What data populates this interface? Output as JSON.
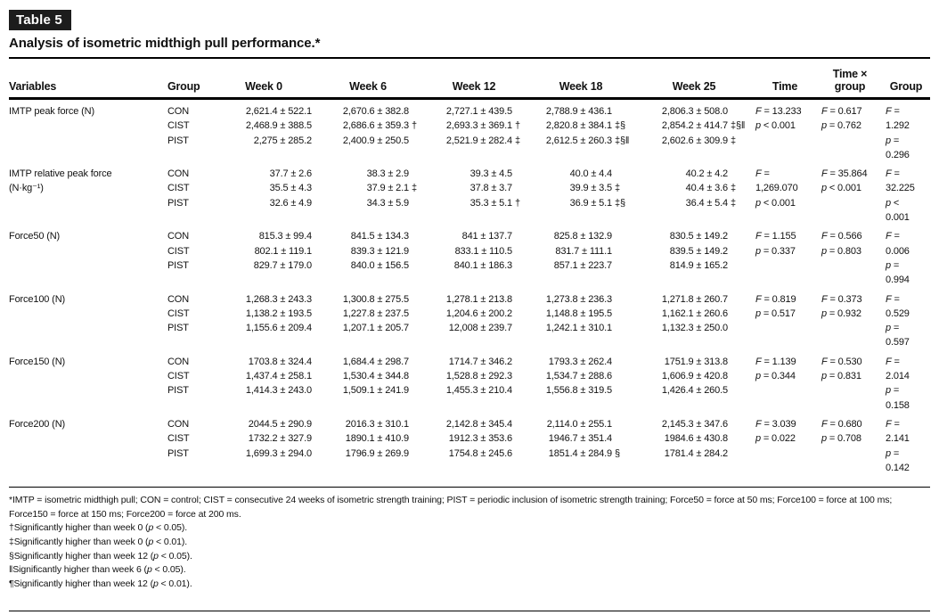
{
  "badge": "Table 5",
  "caption": "Analysis of isometric midthigh pull performance.*",
  "columns": {
    "variables": "Variables",
    "group": "Group",
    "week0": "Week 0",
    "week6": "Week 6",
    "week12": "Week 12",
    "week18": "Week 18",
    "week25": "Week 25",
    "time": "Time",
    "time_group_line1": "Time ×",
    "time_group_line2": "group",
    "group_stat": "Group"
  },
  "rows": [
    {
      "variable": [
        "IMTP peak force (N)"
      ],
      "groups": [
        "CON",
        "CIST",
        "PIST"
      ],
      "week0": [
        "2,621.4 ± 522.1",
        "2,468.9 ± 388.5",
        "2,275 ± 285.2"
      ],
      "week6": [
        "2,670.6 ± 382.8",
        "2,686.6 ± 359.3 †",
        "2,400.9 ± 250.5"
      ],
      "week12": [
        "2,727.1 ± 439.5",
        "2,693.3 ± 369.1 †",
        "2,521.9 ± 282.4 ‡"
      ],
      "week18": [
        "2,788.9 ± 436.1",
        "2,820.8 ± 384.1 ‡§",
        "2,612.5 ± 260.3 ‡§‖"
      ],
      "week25": [
        "2,806.3 ± 508.0",
        "2,854.2 ± 414.7 ‡§‖",
        "2,602.6 ± 309.9 ‡"
      ],
      "time": [
        "F = 13.233",
        "p < 0.001"
      ],
      "time_group": [
        "F = 0.617",
        "p = 0.762"
      ],
      "group_stat": [
        "F =",
        "1.292",
        "p =",
        "0.296"
      ]
    },
    {
      "variable": [
        "IMTP relative peak force",
        "(N·kg⁻¹)"
      ],
      "groups": [
        "CON",
        "CIST",
        "PIST"
      ],
      "week0": [
        "37.7 ± 2.6",
        "35.5 ± 4.3",
        "32.6 ± 4.9"
      ],
      "week6": [
        "38.3 ± 2.9",
        "37.9 ± 2.1 ‡",
        "34.3 ± 5.9"
      ],
      "week12": [
        "39.3 ± 4.5",
        "37.8 ± 3.7",
        "35.3 ± 5.1 †"
      ],
      "week18": [
        "40.0 ± 4.4",
        "39.9 ± 3.5 ‡",
        "36.9 ± 5.1 ‡§"
      ],
      "week25": [
        "40.2 ± 4.2",
        "40.4 ± 3.6 ‡",
        "36.4 ± 5.4 ‡"
      ],
      "time": [
        "F =",
        "1,269.070",
        "p < 0.001"
      ],
      "time_group": [
        "F = 35.864",
        "p < 0.001"
      ],
      "group_stat": [
        "F =",
        "32.225",
        "p <",
        "0.001"
      ]
    },
    {
      "variable": [
        "Force50 (N)"
      ],
      "groups": [
        "CON",
        "CIST",
        "PIST"
      ],
      "week0": [
        "815.3 ± 99.4",
        "802.1 ± 119.1",
        "829.7 ± 179.0"
      ],
      "week6": [
        "841.5 ± 134.3",
        "839.3 ± 121.9",
        "840.0 ± 156.5"
      ],
      "week12": [
        "841 ± 137.7",
        "833.1 ± 110.5",
        "840.1 ± 186.3"
      ],
      "week18": [
        "825.8 ± 132.9",
        "831.7 ± 111.1",
        "857.1 ± 223.7"
      ],
      "week25": [
        "830.5 ± 149.2",
        "839.5 ± 149.2",
        "814.9 ± 165.2"
      ],
      "time": [
        "F = 1.155",
        "p = 0.337"
      ],
      "time_group": [
        "F = 0.566",
        "p = 0.803"
      ],
      "group_stat": [
        "F =",
        "0.006",
        "p =",
        "0.994"
      ]
    },
    {
      "variable": [
        "Force100 (N)"
      ],
      "groups": [
        "CON",
        "CIST",
        "PIST"
      ],
      "week0": [
        "1,268.3 ± 243.3",
        "1,138.2 ± 193.5",
        "1,155.6 ± 209.4"
      ],
      "week6": [
        "1,300.8 ± 275.5",
        "1,227.8 ± 237.5",
        "1,207.1 ± 205.7"
      ],
      "week12": [
        "1,278.1 ± 213.8",
        "1,204.6 ± 200.2",
        "12,008 ± 239.7"
      ],
      "week18": [
        "1,273.8 ± 236.3",
        "1,148.8 ± 195.5",
        "1,242.1 ± 310.1"
      ],
      "week25": [
        "1,271.8 ± 260.7",
        "1,162.1 ± 260.6",
        "1,132.3 ± 250.0"
      ],
      "time": [
        "F = 0.819",
        "p = 0.517"
      ],
      "time_group": [
        "F = 0.373",
        "p = 0.932"
      ],
      "group_stat": [
        "F =",
        "0.529",
        "p =",
        "0.597"
      ]
    },
    {
      "variable": [
        "Force150 (N)"
      ],
      "groups": [
        "CON",
        "CIST",
        "PIST"
      ],
      "week0": [
        "1703.8 ± 324.4",
        "1,437.4 ± 258.1",
        "1,414.3 ± 243.0"
      ],
      "week6": [
        "1,684.4 ± 298.7",
        "1,530.4 ± 344.8",
        "1,509.1 ± 241.9"
      ],
      "week12": [
        "1714.7 ± 346.2",
        "1,528.8 ± 292.3",
        "1,455.3 ± 210.4"
      ],
      "week18": [
        "1793.3 ± 262.4",
        "1,534.7 ± 288.6",
        "1,556.8 ± 319.5"
      ],
      "week25": [
        "1751.9 ± 313.8",
        "1,606.9 ± 420.8",
        "1,426.4 ± 260.5"
      ],
      "time": [
        "F = 1.139",
        "p = 0.344"
      ],
      "time_group": [
        "F = 0.530",
        "p = 0.831"
      ],
      "group_stat": [
        "F =",
        "2.014",
        "p =",
        "0.158"
      ]
    },
    {
      "variable": [
        "Force200 (N)"
      ],
      "groups": [
        "CON",
        "CIST",
        "PIST"
      ],
      "week0": [
        "2044.5 ± 290.9",
        "1732.2 ± 327.9",
        "1,699.3 ± 294.0"
      ],
      "week6": [
        "2016.3 ± 310.1",
        "1890.1 ± 410.9",
        "1796.9 ± 269.9"
      ],
      "week12": [
        "2,142.8 ± 345.4",
        "1912.3 ± 353.6",
        "1754.8 ± 245.6"
      ],
      "week18": [
        "2,114.0 ± 255.1",
        "1946.7 ± 351.4",
        "1851.4 ± 284.9 §"
      ],
      "week25": [
        "2,145.3 ± 347.6",
        "1984.6 ± 430.8",
        "1781.4 ± 284.2"
      ],
      "time": [
        "F = 3.039",
        "p = 0.022"
      ],
      "time_group": [
        "F = 0.680",
        "p = 0.708"
      ],
      "group_stat": [
        "F =",
        "2.141",
        "p =",
        "0.142"
      ]
    }
  ],
  "footnotes": [
    "*IMTP = isometric midthigh pull; CON = control; CIST = consecutive 24 weeks of isometric strength training; PIST = periodic inclusion of isometric strength training; Force50 = force at 50 ms; Force100 = force at 100 ms; Force150 = force at 150 ms; Force200 = force at 200 ms.",
    "†Significantly higher than week 0 (p < 0.05).",
    "‡Significantly higher than week 0 (p < 0.01).",
    "§Significantly higher than week 12 (p < 0.05).",
    "‖Significantly higher than week 6 (p < 0.05).",
    "¶Significantly higher than week 12 (p < 0.01)."
  ]
}
